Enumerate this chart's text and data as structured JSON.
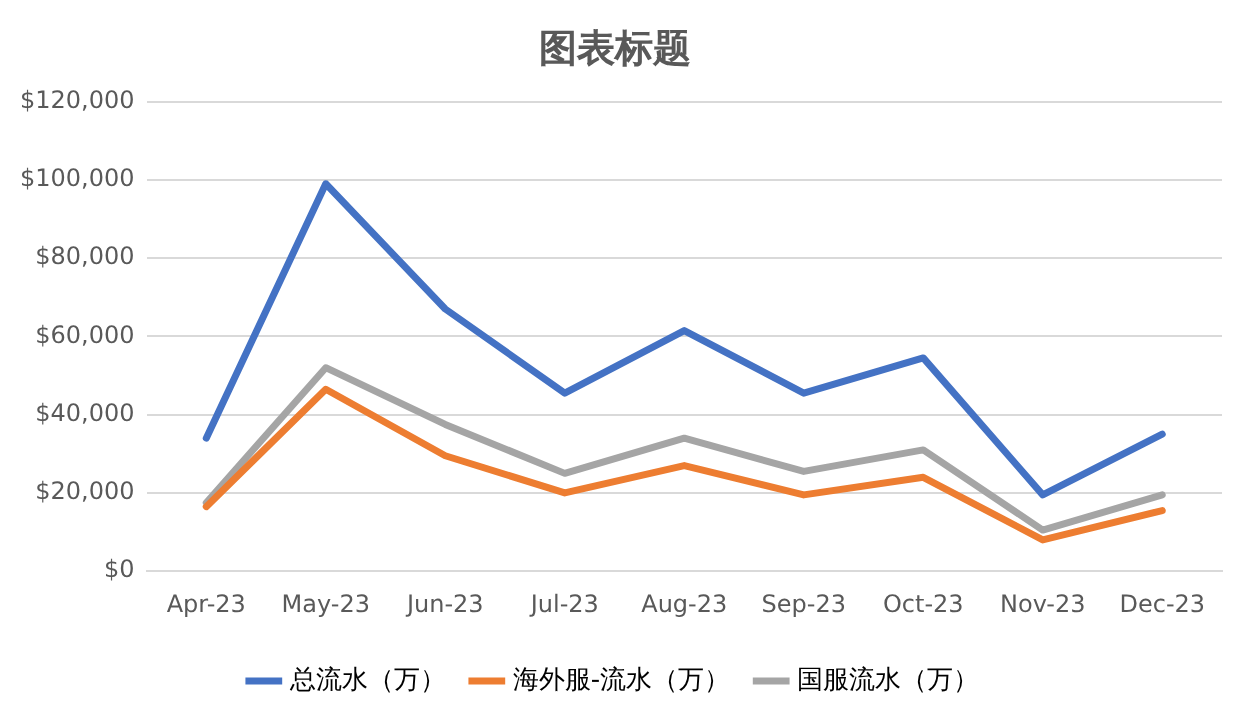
{
  "chart_data": {
    "type": "line",
    "title": "图表标题",
    "categories": [
      "Apr-23",
      "May-23",
      "Jun-23",
      "Jul-23",
      "Aug-23",
      "Sep-23",
      "Oct-23",
      "Nov-23",
      "Dec-23"
    ],
    "series": [
      {
        "name": "总流水（万）",
        "color": "#4472c4",
        "values": [
          34000,
          99000,
          67000,
          45500,
          61500,
          45500,
          54500,
          19500,
          35000
        ]
      },
      {
        "name": "海外服-流水（万）",
        "color": "#ed7d31",
        "values": [
          16500,
          46500,
          29500,
          20000,
          27000,
          19500,
          24000,
          8000,
          15500
        ]
      },
      {
        "name": "国服流水（万）",
        "color": "#a5a5a5",
        "values": [
          17500,
          52000,
          37500,
          25000,
          34000,
          25500,
          31000,
          10500,
          19500
        ]
      }
    ],
    "ylim": [
      0,
      120000
    ],
    "yticks": [
      {
        "value": 0,
        "label": "$0"
      },
      {
        "value": 20000,
        "label": "$20,000"
      },
      {
        "value": 40000,
        "label": "$40,000"
      },
      {
        "value": 60000,
        "label": "$60,000"
      },
      {
        "value": 80000,
        "label": "$80,000"
      },
      {
        "value": 100000,
        "label": "$100,000"
      },
      {
        "value": 120000,
        "label": "$120,000"
      }
    ],
    "grid": "y",
    "legend": "bottom",
    "marker": "none",
    "line_style": "solid"
  }
}
